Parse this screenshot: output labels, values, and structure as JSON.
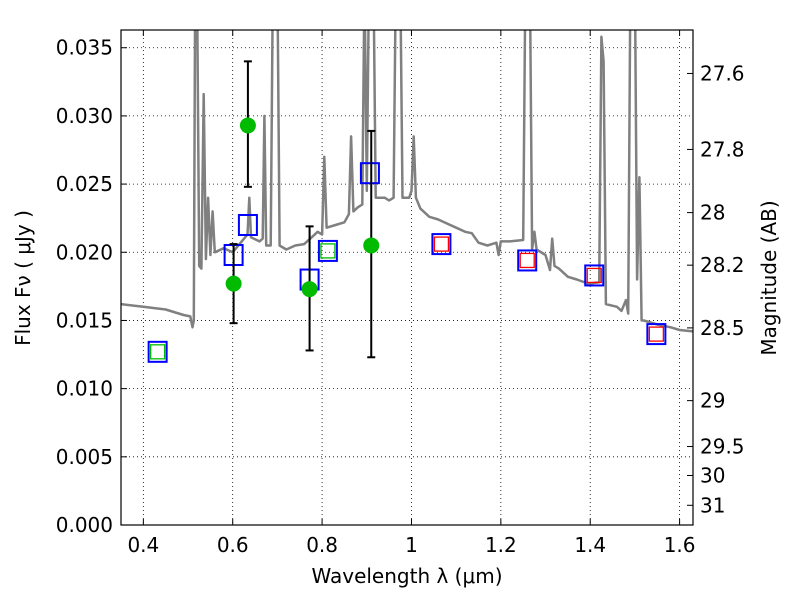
{
  "chart_data": {
    "type": "scatter",
    "title": "",
    "xlabel": "Wavelength  λ (μm)",
    "ylabel": "Flux  Fν  ( μJy )",
    "ylabel_right": "Magnitude (AB)",
    "xlim": [
      0.35,
      1.63
    ],
    "ylim": [
      0.0,
      0.0363
    ],
    "grid": true,
    "xticks": [
      0.4,
      0.6,
      0.8,
      1.0,
      1.2,
      1.4,
      1.6
    ],
    "xtick_labels": [
      "0.4",
      "0.6",
      "0.8",
      "1",
      "1.2",
      "1.4",
      "1.6"
    ],
    "yticks": [
      0.0,
      0.005,
      0.01,
      0.015,
      0.02,
      0.025,
      0.03,
      0.035
    ],
    "ytick_labels": [
      "0.000",
      "0.005",
      "0.010",
      "0.015",
      "0.020",
      "0.025",
      "0.030",
      "0.035"
    ],
    "right_ticks": [
      27.6,
      27.8,
      28,
      28.2,
      28.5,
      29,
      29.5,
      30,
      31
    ],
    "right_tick_labels": [
      "27.6",
      "27.8",
      "28",
      "28.2",
      "28.5",
      "29",
      "29.5",
      "30",
      "31"
    ],
    "colors": {
      "spectrum": "#808080",
      "observed": "#00bb00",
      "model_box": "#0000ff",
      "green_inner": "#00bb00",
      "red_inner": "#ff0000",
      "errorbar": "#000000"
    },
    "spectrum": [
      [
        0.35,
        0.0162
      ],
      [
        0.4,
        0.016
      ],
      [
        0.45,
        0.0158
      ],
      [
        0.49,
        0.0154
      ],
      [
        0.505,
        0.0153
      ],
      [
        0.51,
        0.0145
      ],
      [
        0.513,
        0.015
      ],
      [
        0.516,
        0.04
      ],
      [
        0.52,
        0.04
      ],
      [
        0.525,
        0.019
      ],
      [
        0.53,
        0.0188
      ],
      [
        0.535,
        0.0316
      ],
      [
        0.54,
        0.0195
      ],
      [
        0.545,
        0.024
      ],
      [
        0.55,
        0.0198
      ],
      [
        0.555,
        0.023
      ],
      [
        0.56,
        0.02
      ],
      [
        0.58,
        0.0203
      ],
      [
        0.6,
        0.02
      ],
      [
        0.62,
        0.0208
      ],
      [
        0.633,
        0.0213
      ],
      [
        0.637,
        0.024
      ],
      [
        0.641,
        0.0211
      ],
      [
        0.66,
        0.0208
      ],
      [
        0.667,
        0.021
      ],
      [
        0.671,
        0.03
      ],
      [
        0.675,
        0.0205
      ],
      [
        0.685,
        0.0205
      ],
      [
        0.69,
        0.04
      ],
      [
        0.7,
        0.04
      ],
      [
        0.705,
        0.0205
      ],
      [
        0.72,
        0.0202
      ],
      [
        0.74,
        0.0205
      ],
      [
        0.76,
        0.0206
      ],
      [
        0.78,
        0.0212
      ],
      [
        0.79,
        0.0215
      ],
      [
        0.8,
        0.0213
      ],
      [
        0.805,
        0.027
      ],
      [
        0.81,
        0.0218
      ],
      [
        0.83,
        0.022
      ],
      [
        0.85,
        0.0222
      ],
      [
        0.86,
        0.0228
      ],
      [
        0.865,
        0.0285
      ],
      [
        0.87,
        0.023
      ],
      [
        0.88,
        0.0233
      ],
      [
        0.89,
        0.0235
      ],
      [
        0.895,
        0.04
      ],
      [
        0.9,
        0.0245
      ],
      [
        0.905,
        0.04
      ],
      [
        0.915,
        0.04
      ],
      [
        0.92,
        0.024
      ],
      [
        0.94,
        0.024
      ],
      [
        0.95,
        0.0238
      ],
      [
        0.96,
        0.024
      ],
      [
        0.965,
        0.04
      ],
      [
        0.975,
        0.04
      ],
      [
        0.98,
        0.024
      ],
      [
        0.995,
        0.024
      ],
      [
        1.0,
        0.0245
      ],
      [
        1.005,
        0.0285
      ],
      [
        1.01,
        0.024
      ],
      [
        1.02,
        0.0232
      ],
      [
        1.04,
        0.0226
      ],
      [
        1.06,
        0.0224
      ],
      [
        1.08,
        0.0221
      ],
      [
        1.1,
        0.0218
      ],
      [
        1.12,
        0.0215
      ],
      [
        1.135,
        0.0214
      ],
      [
        1.15,
        0.0207
      ],
      [
        1.17,
        0.0205
      ],
      [
        1.19,
        0.0207
      ],
      [
        1.195,
        0.0198
      ],
      [
        1.2,
        0.0208
      ],
      [
        1.22,
        0.0208
      ],
      [
        1.25,
        0.0209
      ],
      [
        1.255,
        0.04
      ],
      [
        1.265,
        0.04
      ],
      [
        1.27,
        0.0202
      ],
      [
        1.275,
        0.0215
      ],
      [
        1.28,
        0.0202
      ],
      [
        1.3,
        0.0198
      ],
      [
        1.31,
        0.0187
      ],
      [
        1.315,
        0.021
      ],
      [
        1.32,
        0.019
      ],
      [
        1.33,
        0.0188
      ],
      [
        1.35,
        0.0182
      ],
      [
        1.37,
        0.018
      ],
      [
        1.395,
        0.0177
      ],
      [
        1.42,
        0.0178
      ],
      [
        1.425,
        0.0358
      ],
      [
        1.43,
        0.034
      ],
      [
        1.435,
        0.0162
      ],
      [
        1.46,
        0.016
      ],
      [
        1.47,
        0.0157
      ],
      [
        1.48,
        0.0165
      ],
      [
        1.485,
        0.0155
      ],
      [
        1.49,
        0.04
      ],
      [
        1.5,
        0.04
      ],
      [
        1.505,
        0.018
      ],
      [
        1.51,
        0.0255
      ],
      [
        1.515,
        0.015
      ],
      [
        1.52,
        0.015
      ],
      [
        1.55,
        0.0147
      ],
      [
        1.58,
        0.0145
      ],
      [
        1.6,
        0.0143
      ],
      [
        1.63,
        0.0142
      ]
    ],
    "observed": [
      {
        "x": 0.602,
        "y": 0.0177,
        "ylo": 0.0148,
        "yhi": 0.0206
      },
      {
        "x": 0.634,
        "y": 0.0293,
        "ylo": 0.0248,
        "yhi": 0.034
      },
      {
        "x": 0.772,
        "y": 0.0173,
        "ylo": 0.0128,
        "yhi": 0.0219
      },
      {
        "x": 0.91,
        "y": 0.0205,
        "ylo": 0.0123,
        "yhi": 0.0289
      }
    ],
    "model_boxes": [
      {
        "x": 0.432,
        "y": 0.0127,
        "inner": "green"
      },
      {
        "x": 0.602,
        "y": 0.0198,
        "inner": "none"
      },
      {
        "x": 0.634,
        "y": 0.022,
        "inner": "none"
      },
      {
        "x": 0.772,
        "y": 0.018,
        "inner": "none"
      },
      {
        "x": 0.813,
        "y": 0.0201,
        "inner": "green"
      },
      {
        "x": 0.907,
        "y": 0.0258,
        "inner": "none"
      },
      {
        "x": 1.067,
        "y": 0.0206,
        "inner": "red"
      },
      {
        "x": 1.259,
        "y": 0.0194,
        "inner": "red"
      },
      {
        "x": 1.409,
        "y": 0.0183,
        "inner": "red"
      },
      {
        "x": 1.548,
        "y": 0.014,
        "inner": "red"
      }
    ]
  }
}
